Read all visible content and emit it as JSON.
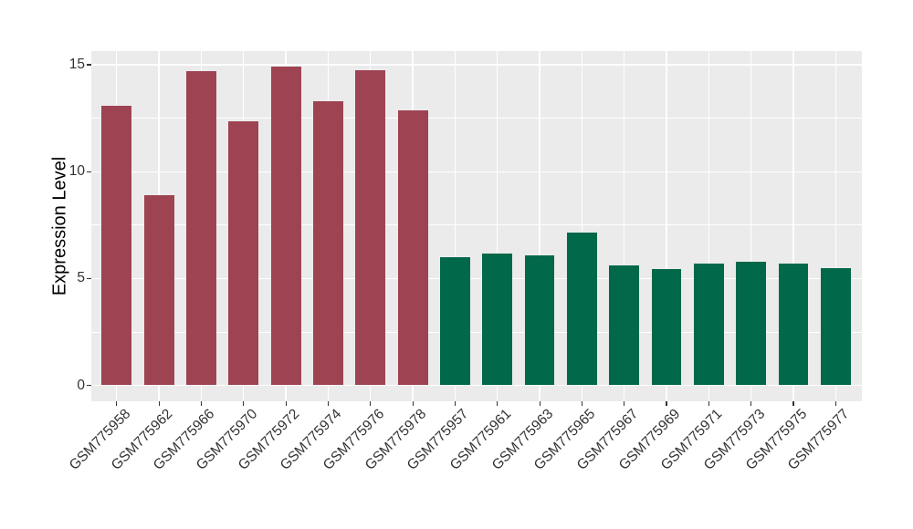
{
  "figure": {
    "background": "#FFFFFF"
  },
  "chart_data": {
    "type": "bar",
    "title": "",
    "xlabel": "",
    "ylabel": "Expression Level",
    "categories": [
      "GSM775958",
      "GSM775962",
      "GSM775966",
      "GSM775970",
      "GSM775972",
      "GSM775974",
      "GSM775976",
      "GSM775978",
      "GSM775957",
      "GSM775961",
      "GSM775963",
      "GSM775965",
      "GSM775967",
      "GSM775969",
      "GSM775971",
      "GSM775973",
      "GSM775975",
      "GSM775977"
    ],
    "values": [
      13.1,
      8.9,
      14.7,
      12.35,
      14.9,
      13.3,
      14.75,
      12.85,
      6.0,
      6.15,
      6.1,
      7.15,
      5.6,
      5.45,
      5.7,
      5.8,
      5.7,
      5.5
    ],
    "bar_colors": [
      "#9E4352",
      "#9E4352",
      "#9E4352",
      "#9E4352",
      "#9E4352",
      "#9E4352",
      "#9E4352",
      "#9E4352",
      "#016849",
      "#016849",
      "#016849",
      "#016849",
      "#016849",
      "#016849",
      "#016849",
      "#016849",
      "#016849",
      "#016849"
    ],
    "group_colors": {
      "maroon_group": "#9E4352",
      "green_group": "#016849"
    },
    "y_ticks": [
      0,
      5,
      10,
      15
    ],
    "y_tick_labels": [
      "0",
      "5",
      "10",
      "15"
    ],
    "y_minor_gridlines": [
      2.5,
      7.5,
      12.5
    ],
    "ylim": [
      -0.8,
      15.7
    ],
    "x_tick_label_rotation_deg": 45,
    "grid": "on",
    "legend_position": "none",
    "panel_background": "#EBEBEB",
    "gridline_color": "#FFFFFF",
    "tick_label_color": "#333333",
    "axis_title_color": "#000000"
  }
}
